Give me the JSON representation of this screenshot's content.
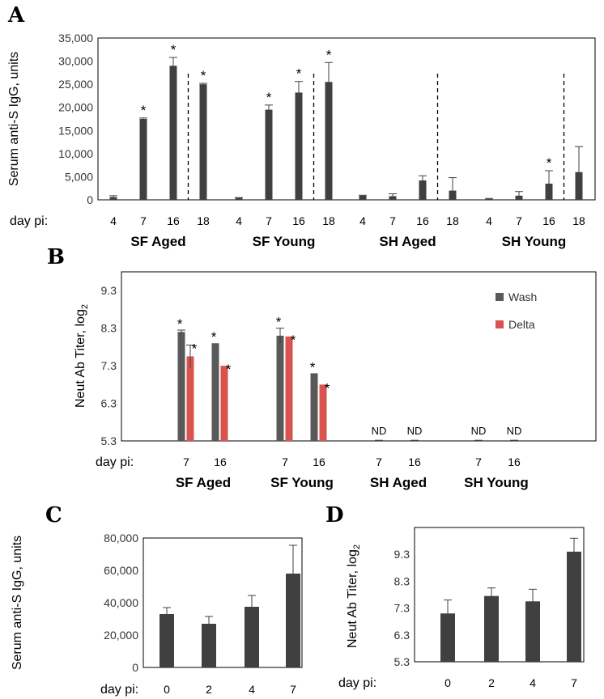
{
  "colors": {
    "bar": "#404040",
    "wash": "#595959",
    "delta": "#d9534f",
    "frame": "#000000",
    "err": "#404040"
  },
  "chart_data": [
    {
      "id": "A",
      "panel_label": "A",
      "type": "bar",
      "ylabel": "Serum anti-S IgG, units",
      "ylim": [
        0,
        35000
      ],
      "yticks": [
        "0",
        "5,000",
        "10,000",
        "15,000",
        "20,000",
        "25,000",
        "30,000",
        "35,000"
      ],
      "day_label": "day pi:",
      "groups": [
        {
          "name": "SF Aged",
          "days": [
            "4",
            "7",
            "16",
            "18"
          ],
          "values": [
            600,
            17500,
            29000,
            25000
          ],
          "errors": [
            300,
            200,
            1800,
            200
          ],
          "sig": [
            false,
            true,
            true,
            true
          ]
        },
        {
          "name": "SF Young",
          "days": [
            "4",
            "7",
            "16",
            "18"
          ],
          "values": [
            400,
            19500,
            23200,
            25500
          ],
          "errors": [
            100,
            1000,
            2400,
            4200
          ],
          "sig": [
            false,
            true,
            true,
            true
          ]
        },
        {
          "name": "SH Aged",
          "days": [
            "4",
            "7",
            "16",
            "18"
          ],
          "values": [
            900,
            800,
            4200,
            2000
          ],
          "errors": [
            100,
            500,
            1000,
            2800
          ],
          "sig": [
            false,
            false,
            false,
            false
          ]
        },
        {
          "name": "SH Young",
          "days": [
            "4",
            "7",
            "16",
            "18"
          ],
          "values": [
            200,
            900,
            3500,
            6000
          ],
          "errors": [
            100,
            900,
            2800,
            5500
          ],
          "sig": [
            false,
            false,
            true,
            false
          ]
        }
      ]
    },
    {
      "id": "B",
      "panel_label": "B",
      "type": "bar",
      "ylabel": "Neut Ab Titer, log",
      "ylabel_sub": "2",
      "ylim": [
        5.3,
        9.8
      ],
      "yticks": [
        "5.3",
        "6.3",
        "7.3",
        "8.3",
        "9.3"
      ],
      "day_label": "day pi:",
      "series": [
        {
          "name": "Wash"
        },
        {
          "name": "Delta"
        }
      ],
      "nd_label": "ND",
      "groups": [
        {
          "name": "SF Aged",
          "days": [
            "7",
            "16"
          ],
          "wash": [
            8.2,
            7.9
          ],
          "wash_err": [
            0.05,
            0.0
          ],
          "delta": [
            7.55,
            7.3
          ],
          "delta_err": [
            0.3,
            0.0
          ],
          "wash_sig": [
            true,
            true
          ],
          "delta_sig": [
            true,
            true
          ],
          "nd": [
            false,
            false
          ]
        },
        {
          "name": "SF Young",
          "days": [
            "7",
            "16"
          ],
          "wash": [
            8.1,
            7.1
          ],
          "wash_err": [
            0.2,
            0.0
          ],
          "delta": [
            8.08,
            6.8
          ],
          "delta_err": [
            0.0,
            0.0
          ],
          "wash_sig": [
            true,
            true
          ],
          "delta_sig": [
            true,
            true
          ],
          "nd": [
            false,
            false
          ]
        },
        {
          "name": "SH Aged",
          "days": [
            "7",
            "16"
          ],
          "wash": [
            5.3,
            5.3
          ],
          "wash_err": [
            0,
            0
          ],
          "delta": [
            5.3,
            5.3
          ],
          "delta_err": [
            0,
            0
          ],
          "wash_sig": [
            false,
            false
          ],
          "delta_sig": [
            false,
            false
          ],
          "nd": [
            true,
            true
          ]
        },
        {
          "name": "SH Young",
          "days": [
            "7",
            "16"
          ],
          "wash": [
            5.3,
            5.3
          ],
          "wash_err": [
            0,
            0
          ],
          "delta": [
            5.3,
            5.3
          ],
          "delta_err": [
            0,
            0
          ],
          "wash_sig": [
            false,
            false
          ],
          "delta_sig": [
            false,
            false
          ],
          "nd": [
            true,
            true
          ]
        }
      ]
    },
    {
      "id": "C",
      "panel_label": "C",
      "type": "bar",
      "ylabel": "Serum anti-S IgG, units",
      "ylim": [
        0,
        80000
      ],
      "yticks": [
        "0",
        "20,000",
        "40,000",
        "60,000",
        "80,000"
      ],
      "day_label": "day pi:",
      "categories": [
        "0",
        "2",
        "4",
        "7"
      ],
      "values": [
        33000,
        27000,
        37500,
        58000
      ],
      "errors": [
        4000,
        4500,
        7000,
        17500
      ]
    },
    {
      "id": "D",
      "panel_label": "D",
      "type": "bar",
      "ylabel": "Neut Ab Titer, log",
      "ylabel_sub": "2",
      "ylim": [
        5.3,
        10.3
      ],
      "yticks": [
        "5.3",
        "6.3",
        "7.3",
        "8.3",
        "9.3"
      ],
      "day_label": "day pi:",
      "categories": [
        "0",
        "2",
        "4",
        "7"
      ],
      "values": [
        7.1,
        7.75,
        7.55,
        9.4
      ],
      "errors": [
        0.5,
        0.3,
        0.45,
        0.5
      ]
    }
  ]
}
